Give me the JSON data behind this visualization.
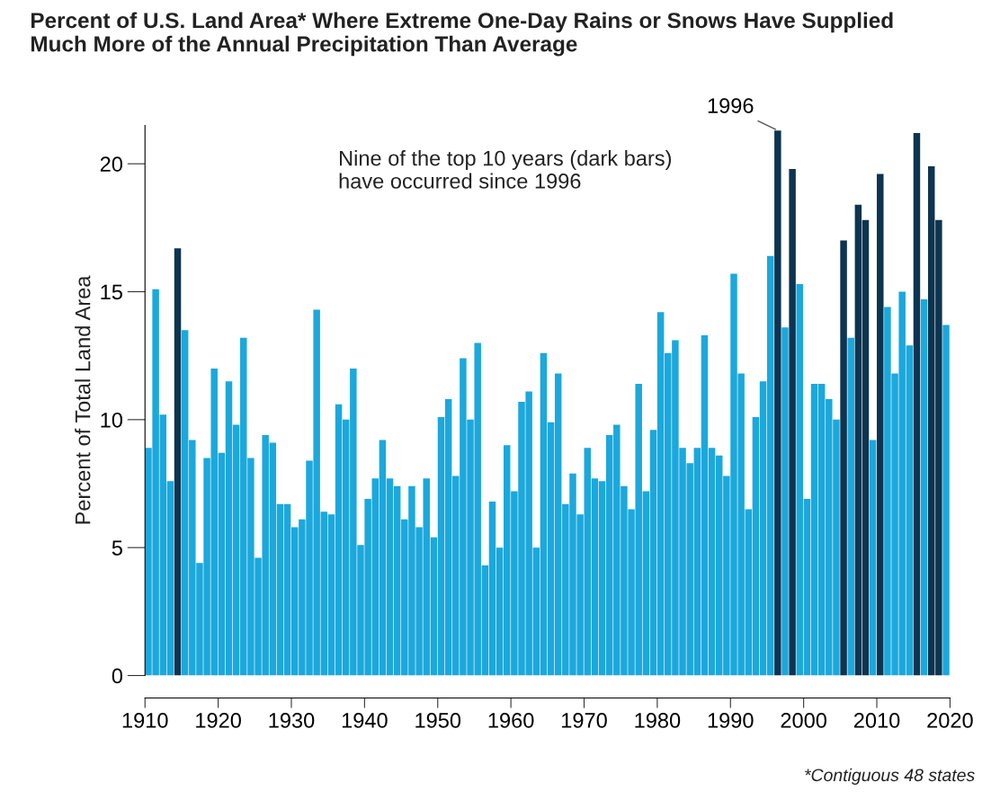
{
  "chart_data": {
    "type": "bar",
    "title": "Percent of U.S. Land Area* Where Extreme One-Day Rains or Snows Have Supplied\nMuch More of the Annual Precipitation Than Average",
    "ylabel": "Percent of Total Land Area",
    "x": [
      1910,
      1911,
      1912,
      1913,
      1914,
      1915,
      1916,
      1917,
      1918,
      1919,
      1920,
      1921,
      1922,
      1923,
      1924,
      1925,
      1926,
      1927,
      1928,
      1929,
      1930,
      1931,
      1932,
      1933,
      1934,
      1935,
      1936,
      1937,
      1938,
      1939,
      1940,
      1941,
      1942,
      1943,
      1944,
      1945,
      1946,
      1947,
      1948,
      1949,
      1950,
      1951,
      1952,
      1953,
      1954,
      1955,
      1956,
      1957,
      1958,
      1959,
      1960,
      1961,
      1962,
      1963,
      1964,
      1965,
      1966,
      1967,
      1968,
      1969,
      1970,
      1971,
      1972,
      1973,
      1974,
      1975,
      1976,
      1977,
      1978,
      1979,
      1980,
      1981,
      1982,
      1983,
      1984,
      1985,
      1986,
      1987,
      1988,
      1989,
      1990,
      1991,
      1992,
      1993,
      1994,
      1995,
      1996,
      1997,
      1998,
      1999,
      2000,
      2001,
      2002,
      2003,
      2004,
      2005,
      2006,
      2007,
      2008,
      2009,
      2010,
      2011,
      2012,
      2013,
      2014,
      2015,
      2016,
      2017,
      2018,
      2019
    ],
    "values": [
      8.9,
      15.1,
      10.2,
      7.6,
      16.7,
      13.5,
      9.2,
      4.4,
      8.5,
      12.0,
      8.7,
      11.5,
      9.8,
      13.2,
      8.5,
      4.6,
      9.4,
      9.1,
      6.7,
      6.7,
      5.8,
      6.1,
      8.4,
      14.3,
      6.4,
      6.3,
      10.6,
      10.0,
      12.0,
      5.1,
      6.9,
      7.7,
      9.2,
      7.7,
      7.4,
      6.1,
      7.4,
      5.8,
      7.7,
      5.4,
      10.1,
      10.8,
      7.8,
      12.4,
      10.0,
      13.0,
      4.3,
      6.8,
      5.0,
      9.0,
      7.2,
      10.7,
      11.1,
      5.0,
      12.6,
      9.9,
      11.8,
      6.7,
      7.9,
      6.3,
      8.9,
      7.7,
      7.6,
      9.4,
      9.8,
      7.4,
      6.5,
      11.4,
      7.2,
      9.6,
      14.2,
      12.6,
      13.1,
      8.9,
      8.3,
      8.9,
      13.3,
      8.9,
      8.6,
      7.8,
      15.7,
      11.8,
      6.5,
      10.1,
      11.5,
      16.4,
      21.3,
      13.6,
      19.8,
      15.3,
      6.9,
      11.4,
      11.4,
      10.8,
      10.0,
      17.0,
      13.2,
      18.4,
      17.8,
      9.2,
      19.6,
      14.4,
      11.8,
      15.0,
      12.9,
      21.2,
      14.7,
      19.9,
      17.8,
      13.7
    ],
    "colors": [
      "#1ba8dc",
      "#1ba8dc",
      "#1ba8dc",
      "#1ba8dc",
      "#0d3450",
      "#1ba8dc",
      "#1ba8dc",
      "#1ba8dc",
      "#1ba8dc",
      "#1ba8dc",
      "#1ba8dc",
      "#1ba8dc",
      "#1ba8dc",
      "#1ba8dc",
      "#1ba8dc",
      "#1ba8dc",
      "#1ba8dc",
      "#1ba8dc",
      "#1ba8dc",
      "#1ba8dc",
      "#1ba8dc",
      "#1ba8dc",
      "#1ba8dc",
      "#1ba8dc",
      "#1ba8dc",
      "#1ba8dc",
      "#1ba8dc",
      "#1ba8dc",
      "#1ba8dc",
      "#1ba8dc",
      "#1ba8dc",
      "#1ba8dc",
      "#1ba8dc",
      "#1ba8dc",
      "#1ba8dc",
      "#1ba8dc",
      "#1ba8dc",
      "#1ba8dc",
      "#1ba8dc",
      "#1ba8dc",
      "#1ba8dc",
      "#1ba8dc",
      "#1ba8dc",
      "#1ba8dc",
      "#1ba8dc",
      "#1ba8dc",
      "#1ba8dc",
      "#1ba8dc",
      "#1ba8dc",
      "#1ba8dc",
      "#1ba8dc",
      "#1ba8dc",
      "#1ba8dc",
      "#1ba8dc",
      "#1ba8dc",
      "#1ba8dc",
      "#1ba8dc",
      "#1ba8dc",
      "#1ba8dc",
      "#1ba8dc",
      "#1ba8dc",
      "#1ba8dc",
      "#1ba8dc",
      "#1ba8dc",
      "#1ba8dc",
      "#1ba8dc",
      "#1ba8dc",
      "#1ba8dc",
      "#1ba8dc",
      "#1ba8dc",
      "#1ba8dc",
      "#1ba8dc",
      "#1ba8dc",
      "#1ba8dc",
      "#1ba8dc",
      "#1ba8dc",
      "#1ba8dc",
      "#1ba8dc",
      "#1ba8dc",
      "#1ba8dc",
      "#1ba8dc",
      "#1ba8dc",
      "#1ba8dc",
      "#1ba8dc",
      "#1ba8dc",
      "#1ba8dc",
      "#0d3450",
      "#1ba8dc",
      "#0d3450",
      "#1ba8dc",
      "#1ba8dc",
      "#1ba8dc",
      "#1ba8dc",
      "#1ba8dc",
      "#1ba8dc",
      "#0d3450",
      "#1ba8dc",
      "#0d3450",
      "#0d3450",
      "#1ba8dc",
      "#0d3450",
      "#1ba8dc",
      "#1ba8dc",
      "#1ba8dc",
      "#1ba8dc",
      "#0d3450",
      "#1ba8dc",
      "#0d3450",
      "#0d3450",
      "#1ba8dc"
    ],
    "xlim": [
      1910,
      2020
    ],
    "xticks": [
      1910,
      1920,
      1930,
      1940,
      1950,
      1960,
      1970,
      1980,
      1990,
      2000,
      2010,
      2020
    ],
    "ylim": [
      0,
      21.5
    ],
    "yticks": [
      0,
      5,
      10,
      15,
      20
    ],
    "grid": false,
    "annotations": [
      {
        "text": "1996",
        "x": 1996,
        "y": 21.3
      },
      "Nine of the top 10 years (dark bars)\nhave occurred since 1996",
      "*Contiguous 48 states"
    ]
  }
}
